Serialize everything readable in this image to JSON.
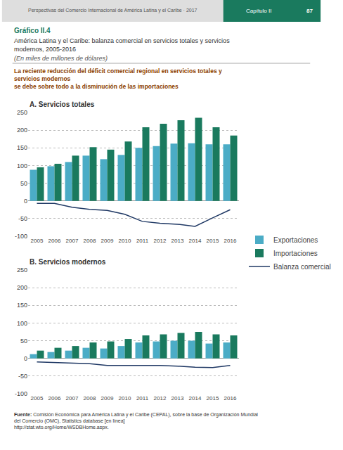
{
  "title": "Gráfico II.4",
  "subtitle": [
    "América Latina y el Caribe: balanza comercial en servicios totales y servicios modernos, 2005-2016",
    "(En miles de millones de dólares)"
  ],
  "annotations": [
    "Perspectivas del Comercio Internacional de América Latina y el Caribe · 2017",
    "Capítulo II",
    "87",
    "La reciente reducción del déficit comercial regional en servicios totales y servicios modernos\nse debe sobre todo a la disminución de las importaciones",
    "Fuente:",
    "Comisión Económica para América Latina y el Caribe (CEPAL), sobre la base de Organización Mundial del Comercio (OMC), Statistics database [en línea]\nhttp://stat.wto.org/Home/WSDBHome.aspx."
  ],
  "chart_data": [
    {
      "type": "bar",
      "title": "A. Servicios totales",
      "categories": [
        "2005",
        "2006",
        "2007",
        "2008",
        "2009",
        "2010",
        "2011",
        "2012",
        "2013",
        "2014",
        "2015",
        "2016"
      ],
      "series": [
        {
          "name": "Exportaciones",
          "type": "bar",
          "color": "#4BACC6",
          "values": [
            88,
            98,
            110,
            128,
            118,
            130,
            150,
            155,
            162,
            163,
            160,
            160
          ]
        },
        {
          "name": "Importaciones",
          "type": "bar",
          "color": "#1A7A5E",
          "values": [
            95,
            105,
            128,
            152,
            145,
            168,
            208,
            218,
            228,
            235,
            208,
            185
          ]
        },
        {
          "name": "Balanza comercial",
          "type": "line",
          "color": "#1F3864",
          "values": [
            -7,
            -7,
            -18,
            -24,
            -27,
            -38,
            -58,
            -63,
            -66,
            -72,
            -48,
            -25
          ]
        }
      ],
      "ylim": [
        -100,
        250
      ],
      "yticks": [
        -100,
        -50,
        0,
        50,
        100,
        150,
        200,
        250
      ],
      "grid": true,
      "legend": "right"
    },
    {
      "type": "bar",
      "title": "B. Servicios modernos",
      "categories": [
        "2005",
        "2006",
        "2007",
        "2008",
        "2009",
        "2010",
        "2011",
        "2012",
        "2013",
        "2014",
        "2015",
        "2016"
      ],
      "series": [
        {
          "name": "Exportaciones",
          "type": "bar",
          "color": "#4BACC6",
          "values": [
            12,
            18,
            22,
            30,
            28,
            35,
            45,
            48,
            50,
            50,
            42,
            45
          ]
        },
        {
          "name": "Importaciones",
          "type": "bar",
          "color": "#1A7A5E",
          "values": [
            22,
            30,
            35,
            45,
            48,
            55,
            65,
            68,
            72,
            75,
            68,
            65
          ]
        },
        {
          "name": "Balanza comercial",
          "type": "line",
          "color": "#1F3864",
          "values": [
            -10,
            -12,
            -13,
            -15,
            -20,
            -20,
            -20,
            -20,
            -22,
            -25,
            -26,
            -20
          ]
        }
      ],
      "ylim": [
        -100,
        250
      ],
      "yticks": [
        -100,
        -50,
        0,
        50,
        100,
        150,
        200,
        250
      ],
      "grid": true,
      "legend": "right"
    }
  ]
}
